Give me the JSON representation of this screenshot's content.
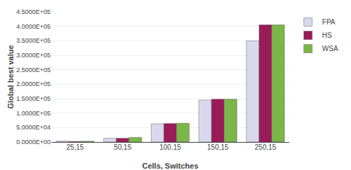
{
  "chart_data": {
    "type": "bar",
    "categories": [
      "25,15",
      "50,15",
      "100,15",
      "150,15",
      "250,15"
    ],
    "series": [
      {
        "name": "FPA",
        "color": "#d8d8ee",
        "values": [
          3500,
          13000,
          63000,
          145000,
          350000
        ]
      },
      {
        "name": "HS",
        "color": "#9b1a5a",
        "values": [
          2000,
          13000,
          64000,
          148000,
          405000
        ]
      },
      {
        "name": "WSA",
        "color": "#7ab648",
        "values": [
          3000,
          16000,
          65000,
          148000,
          405000
        ]
      }
    ],
    "xlabel": "Cells, Switches",
    "ylabel": "Global best value",
    "ylim": [
      0,
      450000
    ],
    "yticks": [
      {
        "value": 0,
        "label": "0.0000E+00"
      },
      {
        "value": 50000,
        "label": "5.0000E+04"
      },
      {
        "value": 100000,
        "label": "1.0000E+05"
      },
      {
        "value": 150000,
        "label": "1.5000E+05"
      },
      {
        "value": 200000,
        "label": "2.0000E+05"
      },
      {
        "value": 250000,
        "label": "2.5000E+05"
      },
      {
        "value": 300000,
        "label": "3.0000E+05"
      },
      {
        "value": 350000,
        "label": "3.5000E+05"
      },
      {
        "value": 400000,
        "label": "4.0000E+05"
      },
      {
        "value": 450000,
        "label": "4.5000E+05"
      }
    ],
    "grid": true,
    "legend": "right"
  }
}
